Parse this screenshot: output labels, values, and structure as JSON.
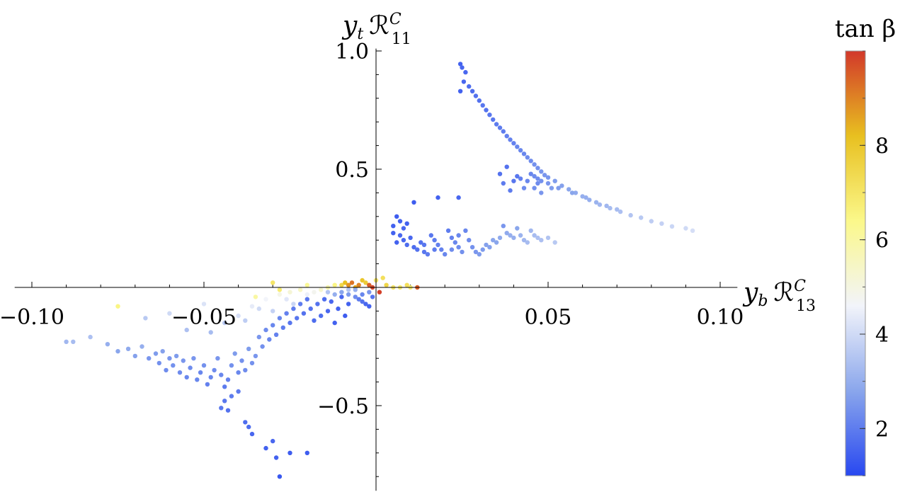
{
  "chart_data": {
    "type": "scatter",
    "xlabel": {
      "base": "y",
      "base_sub": "b",
      "script": "ℛ",
      "sup": "C",
      "sub": "13"
    },
    "ylabel": {
      "base": "y",
      "base_sub": "t",
      "script": "ℛ",
      "sup": "C",
      "sub": "11"
    },
    "xlim": [
      -0.105,
      0.105
    ],
    "ylim": [
      -0.86,
      1.01
    ],
    "x_ticks": [
      {
        "value": -0.1,
        "label": "−0.10"
      },
      {
        "value": -0.05,
        "label": "−0.05"
      },
      {
        "value": 0.05,
        "label": "0.05"
      },
      {
        "value": 0.1,
        "label": "0.10"
      }
    ],
    "y_ticks": [
      {
        "value": -0.5,
        "label": "−0.5"
      },
      {
        "value": 0.5,
        "label": "0.5"
      },
      {
        "value": 1.0,
        "label": "1.0"
      }
    ],
    "grid": false,
    "colorbar": {
      "title": "tan β",
      "range": [
        1,
        10
      ],
      "ticks": [
        {
          "value": 2,
          "label": "2"
        },
        {
          "value": 4,
          "label": "4"
        },
        {
          "value": 6,
          "label": "6"
        },
        {
          "value": 8,
          "label": "8"
        }
      ],
      "colors": [
        "#2848f0",
        "#8aa6ec",
        "#f2f4fa",
        "#fbf88a",
        "#e8c020",
        "#d2382a"
      ]
    },
    "points": [
      [
        0.0245,
        0.945,
        1.5
      ],
      [
        0.025,
        0.93,
        1.6
      ],
      [
        0.026,
        0.91,
        1.6
      ],
      [
        0.0255,
        0.87,
        1.6
      ],
      [
        0.027,
        0.85,
        1.7
      ],
      [
        0.0245,
        0.83,
        1.5
      ],
      [
        0.028,
        0.83,
        1.7
      ],
      [
        0.029,
        0.81,
        1.8
      ],
      [
        0.03,
        0.79,
        1.8
      ],
      [
        0.031,
        0.77,
        1.9
      ],
      [
        0.032,
        0.75,
        1.8
      ],
      [
        0.033,
        0.73,
        1.9
      ],
      [
        0.034,
        0.71,
        1.9
      ],
      [
        0.035,
        0.69,
        2.0
      ],
      [
        0.036,
        0.675,
        2.0
      ],
      [
        0.037,
        0.66,
        2.0
      ],
      [
        0.038,
        0.64,
        2.1
      ],
      [
        0.039,
        0.625,
        2.1
      ],
      [
        0.04,
        0.61,
        2.1
      ],
      [
        0.041,
        0.595,
        2.2
      ],
      [
        0.042,
        0.58,
        2.2
      ],
      [
        0.043,
        0.565,
        2.2
      ],
      [
        0.044,
        0.55,
        2.3
      ],
      [
        0.045,
        0.535,
        2.3
      ],
      [
        0.046,
        0.52,
        2.4
      ],
      [
        0.047,
        0.505,
        2.4
      ],
      [
        0.048,
        0.49,
        2.5
      ],
      [
        0.049,
        0.475,
        2.5
      ],
      [
        0.05,
        0.465,
        2.5
      ],
      [
        0.052,
        0.45,
        2.6
      ],
      [
        0.054,
        0.43,
        2.7
      ],
      [
        0.056,
        0.415,
        2.8
      ],
      [
        0.058,
        0.4,
        2.9
      ],
      [
        0.06,
        0.385,
        3.0
      ],
      [
        0.062,
        0.37,
        3.0
      ],
      [
        0.065,
        0.35,
        3.2
      ],
      [
        0.068,
        0.335,
        3.3
      ],
      [
        0.071,
        0.32,
        3.4
      ],
      [
        0.074,
        0.305,
        3.5
      ],
      [
        0.077,
        0.295,
        3.6
      ],
      [
        0.08,
        0.28,
        3.7
      ],
      [
        0.083,
        0.27,
        3.8
      ],
      [
        0.086,
        0.258,
        3.9
      ],
      [
        0.09,
        0.25,
        4.0
      ],
      [
        0.092,
        0.24,
        4.1
      ],
      [
        0.045,
        0.48,
        2.2
      ],
      [
        0.046,
        0.47,
        2.3
      ],
      [
        0.047,
        0.46,
        2.3
      ],
      [
        0.048,
        0.45,
        2.4
      ],
      [
        0.05,
        0.44,
        2.5
      ],
      [
        0.053,
        0.42,
        2.6
      ],
      [
        0.057,
        0.4,
        2.8
      ],
      [
        0.061,
        0.38,
        3.0
      ],
      [
        0.064,
        0.36,
        3.1
      ],
      [
        0.067,
        0.345,
        3.2
      ],
      [
        0.07,
        0.33,
        3.3
      ],
      [
        0.018,
        0.38,
        1.5
      ],
      [
        0.024,
        0.38,
        1.6
      ],
      [
        0.038,
        0.51,
        1.8
      ],
      [
        0.036,
        0.48,
        1.8
      ],
      [
        0.037,
        0.44,
        2.0
      ],
      [
        0.04,
        0.45,
        1.9
      ],
      [
        0.042,
        0.46,
        2.1
      ],
      [
        0.044,
        0.45,
        2.2
      ],
      [
        0.046,
        0.42,
        2.4
      ],
      [
        0.043,
        0.42,
        2.3
      ],
      [
        0.047,
        0.44,
        2.3
      ],
      [
        0.048,
        0.4,
        2.5
      ],
      [
        0.051,
        0.42,
        2.6
      ],
      [
        0.039,
        0.41,
        2.0
      ],
      [
        0.041,
        0.47,
        1.9
      ],
      [
        0.006,
        0.3,
        1.4
      ],
      [
        0.007,
        0.28,
        1.5
      ],
      [
        0.005,
        0.26,
        1.5
      ],
      [
        0.008,
        0.25,
        1.6
      ],
      [
        0.009,
        0.27,
        1.5
      ],
      [
        0.005,
        0.23,
        1.5
      ],
      [
        0.007,
        0.22,
        1.6
      ],
      [
        0.01,
        0.21,
        1.6
      ],
      [
        0.011,
        0.36,
        1.4
      ],
      [
        0.009,
        0.18,
        1.7
      ],
      [
        0.011,
        0.17,
        1.7
      ],
      [
        0.012,
        0.16,
        1.8
      ],
      [
        0.013,
        0.19,
        1.8
      ],
      [
        0.014,
        0.15,
        1.9
      ],
      [
        0.015,
        0.14,
        2.0
      ],
      [
        0.016,
        0.22,
        1.9
      ],
      [
        0.017,
        0.2,
        2.0
      ],
      [
        0.018,
        0.18,
        2.1
      ],
      [
        0.019,
        0.16,
        2.1
      ],
      [
        0.02,
        0.14,
        2.2
      ],
      [
        0.021,
        0.24,
        2.0
      ],
      [
        0.022,
        0.21,
        2.1
      ],
      [
        0.023,
        0.19,
        2.2
      ],
      [
        0.024,
        0.17,
        2.3
      ],
      [
        0.025,
        0.15,
        2.4
      ],
      [
        0.026,
        0.24,
        2.2
      ],
      [
        0.027,
        0.2,
        2.3
      ],
      [
        0.028,
        0.17,
        2.4
      ],
      [
        0.029,
        0.15,
        2.5
      ],
      [
        0.03,
        0.14,
        2.6
      ],
      [
        0.031,
        0.16,
        2.6
      ],
      [
        0.032,
        0.18,
        2.7
      ],
      [
        0.033,
        0.17,
        2.7
      ],
      [
        0.034,
        0.2,
        2.8
      ],
      [
        0.035,
        0.19,
        2.8
      ],
      [
        0.036,
        0.21,
        2.9
      ],
      [
        0.037,
        0.26,
        2.5
      ],
      [
        0.038,
        0.23,
        2.9
      ],
      [
        0.039,
        0.22,
        3.0
      ],
      [
        0.04,
        0.21,
        3.0
      ],
      [
        0.041,
        0.25,
        2.8
      ],
      [
        0.042,
        0.22,
        3.1
      ],
      [
        0.043,
        0.2,
        3.2
      ],
      [
        0.044,
        0.19,
        3.3
      ],
      [
        0.045,
        0.24,
        3.2
      ],
      [
        0.046,
        0.22,
        3.3
      ],
      [
        0.047,
        0.21,
        3.4
      ],
      [
        0.048,
        0.2,
        3.4
      ],
      [
        0.05,
        0.21,
        3.5
      ],
      [
        0.052,
        0.19,
        3.6
      ],
      [
        0.014,
        0.18,
        1.9
      ],
      [
        0.017,
        0.16,
        2.0
      ],
      [
        0.022,
        0.16,
        2.3
      ],
      [
        0.008,
        0.2,
        1.6
      ],
      [
        0.006,
        0.19,
        1.5
      ],
      [
        0.024,
        0.22,
        2.2
      ],
      [
        -0.09,
        -0.23,
        3.2
      ],
      [
        -0.088,
        -0.23,
        3.3
      ],
      [
        -0.083,
        -0.21,
        3.4
      ],
      [
        -0.078,
        -0.24,
        3.0
      ],
      [
        -0.075,
        -0.27,
        2.8
      ],
      [
        -0.072,
        -0.26,
        2.9
      ],
      [
        -0.07,
        -0.29,
        2.7
      ],
      [
        -0.068,
        -0.25,
        3.0
      ],
      [
        -0.066,
        -0.3,
        2.5
      ],
      [
        -0.064,
        -0.28,
        2.6
      ],
      [
        -0.063,
        -0.32,
        2.4
      ],
      [
        -0.062,
        -0.27,
        2.7
      ],
      [
        -0.061,
        -0.35,
        2.3
      ],
      [
        -0.06,
        -0.3,
        2.5
      ],
      [
        -0.059,
        -0.33,
        2.4
      ],
      [
        -0.058,
        -0.29,
        2.6
      ],
      [
        -0.057,
        -0.36,
        2.3
      ],
      [
        -0.056,
        -0.31,
        2.5
      ],
      [
        -0.055,
        -0.38,
        2.2
      ],
      [
        -0.054,
        -0.34,
        2.3
      ],
      [
        -0.053,
        -0.3,
        2.5
      ],
      [
        -0.052,
        -0.39,
        2.2
      ],
      [
        -0.051,
        -0.36,
        2.2
      ],
      [
        -0.05,
        -0.33,
        2.4
      ],
      [
        -0.049,
        -0.41,
        2.1
      ],
      [
        -0.048,
        -0.38,
        2.2
      ],
      [
        -0.047,
        -0.35,
        2.3
      ],
      [
        -0.046,
        -0.3,
        2.5
      ],
      [
        -0.045,
        -0.37,
        2.2
      ],
      [
        -0.044,
        -0.42,
        2.0
      ],
      [
        -0.043,
        -0.39,
        2.1
      ],
      [
        -0.042,
        -0.33,
        2.4
      ],
      [
        -0.041,
        -0.28,
        2.6
      ],
      [
        -0.04,
        -0.36,
        2.2
      ],
      [
        -0.039,
        -0.31,
        2.4
      ],
      [
        -0.038,
        -0.35,
        2.3
      ],
      [
        -0.037,
        -0.26,
        2.6
      ],
      [
        -0.036,
        -0.32,
        2.4
      ],
      [
        -0.035,
        -0.29,
        2.5
      ],
      [
        -0.034,
        -0.21,
        2.5
      ],
      [
        -0.033,
        -0.25,
        2.4
      ],
      [
        -0.032,
        -0.18,
        2.3
      ],
      [
        -0.031,
        -0.22,
        2.2
      ],
      [
        -0.03,
        -0.16,
        2.2
      ],
      [
        -0.029,
        -0.2,
        2.1
      ],
      [
        -0.028,
        -0.13,
        2.2
      ],
      [
        -0.027,
        -0.17,
        2.0
      ],
      [
        -0.026,
        -0.11,
        2.1
      ],
      [
        -0.025,
        -0.15,
        1.9
      ],
      [
        -0.024,
        -0.09,
        2.0
      ],
      [
        -0.023,
        -0.13,
        1.9
      ],
      [
        -0.022,
        -0.07,
        2.0
      ],
      [
        -0.021,
        -0.11,
        1.8
      ],
      [
        -0.02,
        -0.05,
        1.9
      ],
      [
        -0.019,
        -0.09,
        1.8
      ],
      [
        -0.018,
        -0.14,
        1.7
      ],
      [
        -0.017,
        -0.07,
        1.8
      ],
      [
        -0.016,
        -0.12,
        1.7
      ],
      [
        -0.015,
        -0.05,
        1.7
      ],
      [
        -0.014,
        -0.1,
        1.6
      ],
      [
        -0.013,
        -0.06,
        1.6
      ],
      [
        -0.012,
        -0.15,
        1.5
      ],
      [
        -0.011,
        -0.09,
        1.5
      ],
      [
        -0.01,
        -0.04,
        1.6
      ],
      [
        -0.009,
        -0.12,
        1.4
      ],
      [
        -0.008,
        -0.07,
        1.5
      ],
      [
        -0.045,
        -0.51,
        1.9
      ],
      [
        -0.044,
        -0.48,
        1.9
      ],
      [
        -0.043,
        -0.52,
        1.8
      ],
      [
        -0.038,
        -0.57,
        1.7
      ],
      [
        -0.037,
        -0.59,
        1.7
      ],
      [
        -0.036,
        -0.62,
        1.6
      ],
      [
        -0.032,
        -0.68,
        1.5
      ],
      [
        -0.029,
        -0.72,
        1.5
      ],
      [
        -0.028,
        -0.8,
        1.3
      ],
      [
        -0.03,
        -0.65,
        1.6
      ],
      [
        -0.025,
        -0.7,
        1.4
      ],
      [
        -0.02,
        -0.7,
        1.4
      ],
      [
        -0.04,
        -0.44,
        2.0
      ],
      [
        -0.042,
        -0.46,
        2.0
      ],
      [
        -0.04,
        -0.12,
        4.1
      ],
      [
        -0.036,
        -0.08,
        4.4
      ],
      [
        -0.032,
        -0.05,
        4.6
      ],
      [
        -0.028,
        -0.03,
        4.9
      ],
      [
        -0.025,
        -0.02,
        5.2
      ],
      [
        -0.022,
        -0.01,
        5.5
      ],
      [
        -0.02,
        -0.03,
        4.5
      ],
      [
        -0.018,
        -0.02,
        4.8
      ],
      [
        -0.016,
        -0.01,
        5.3
      ],
      [
        -0.014,
        0.0,
        5.8
      ],
      [
        -0.012,
        0.01,
        6.5
      ],
      [
        -0.01,
        0.01,
        7.5
      ],
      [
        -0.009,
        0.02,
        8.2
      ],
      [
        -0.008,
        0.01,
        8.8
      ],
      [
        -0.007,
        0.02,
        9.2
      ],
      [
        -0.006,
        0.0,
        8.5
      ],
      [
        -0.005,
        0.01,
        9.0
      ],
      [
        -0.004,
        0.03,
        8.0
      ],
      [
        -0.003,
        0.02,
        7.8
      ],
      [
        -0.002,
        0.01,
        9.5
      ],
      [
        -0.001,
        0.0,
        9.8
      ],
      [
        0.0,
        0.03,
        7.0
      ],
      [
        0.001,
        -0.02,
        9.9
      ],
      [
        0.002,
        0.04,
        7.2
      ],
      [
        0.003,
        0.01,
        7.5
      ],
      [
        0.005,
        0.0,
        7.0
      ],
      [
        0.007,
        0.0,
        6.8
      ],
      [
        0.009,
        0.01,
        7.2
      ],
      [
        0.01,
        0.0,
        6.8
      ],
      [
        0.012,
        0.0,
        9.5
      ],
      [
        -0.014,
        -0.02,
        3.5
      ],
      [
        -0.012,
        -0.03,
        3.0
      ],
      [
        -0.01,
        -0.02,
        2.8
      ],
      [
        -0.008,
        -0.03,
        2.6
      ],
      [
        -0.006,
        -0.04,
        2.3
      ],
      [
        -0.005,
        -0.05,
        2.0
      ],
      [
        -0.004,
        -0.06,
        1.8
      ],
      [
        -0.003,
        -0.07,
        1.6
      ],
      [
        -0.002,
        -0.08,
        1.5
      ],
      [
        -0.001,
        -0.04,
        1.8
      ],
      [
        -0.002,
        -0.02,
        2.5
      ],
      [
        -0.004,
        -0.03,
        2.2
      ],
      [
        -0.006,
        -0.01,
        3.0
      ],
      [
        -0.008,
        -0.01,
        3.5
      ],
      [
        -0.026,
        -0.05,
        4.3
      ],
      [
        -0.03,
        -0.1,
        3.8
      ],
      [
        -0.034,
        -0.09,
        4.0
      ],
      [
        -0.024,
        -0.07,
        3.9
      ],
      [
        -0.044,
        -0.15,
        3.6
      ],
      [
        -0.038,
        -0.14,
        3.7
      ],
      [
        -0.048,
        -0.19,
        3.3
      ],
      [
        -0.06,
        -0.11,
        4.0
      ],
      [
        -0.067,
        -0.13,
        3.6
      ],
      [
        -0.05,
        -0.07,
        4.2
      ],
      [
        -0.055,
        -0.18,
        3.4
      ],
      [
        -0.075,
        -0.08,
        6.5
      ],
      [
        -0.035,
        -0.04,
        6.0
      ],
      [
        -0.028,
        -0.01,
        6.8
      ],
      [
        -0.02,
        0.01,
        6.2
      ],
      [
        -0.03,
        0.02,
        7.0
      ]
    ]
  }
}
